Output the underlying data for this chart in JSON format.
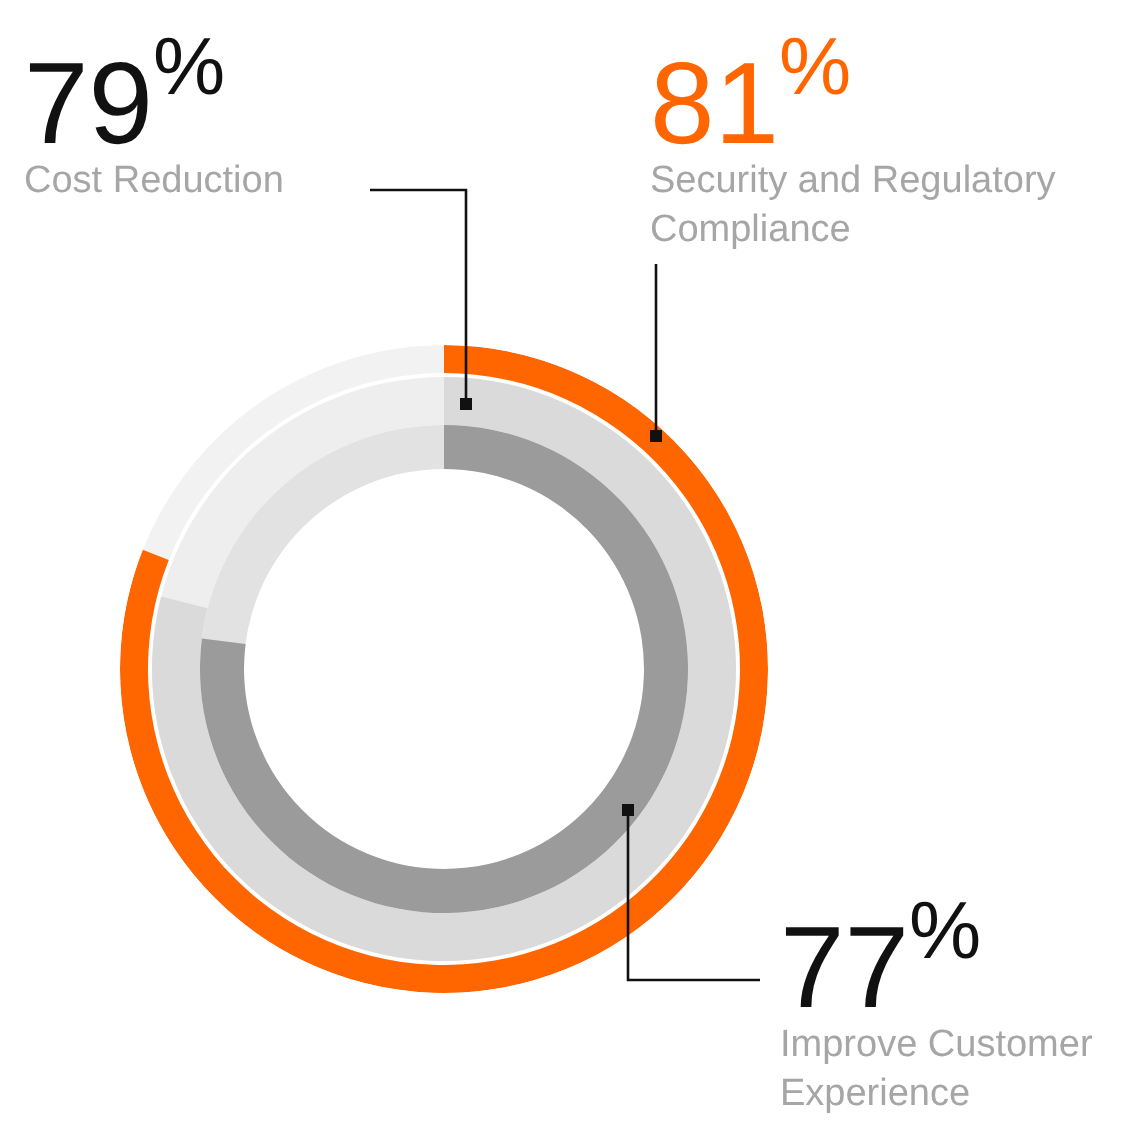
{
  "chart_data": {
    "type": "other",
    "categories": [
      "Cost Reduction",
      "Security and Regulatory Compliance",
      "Improve Customer Experience"
    ],
    "values": [
      79,
      81,
      77
    ],
    "value_labels": [
      "79$^{%}$",
      "81$^{%}$",
      "77$^{%}$"
    ],
    "colors": [
      "#dadada",
      "#ff6600",
      "#9b9b9b"
    ]
  }
}
